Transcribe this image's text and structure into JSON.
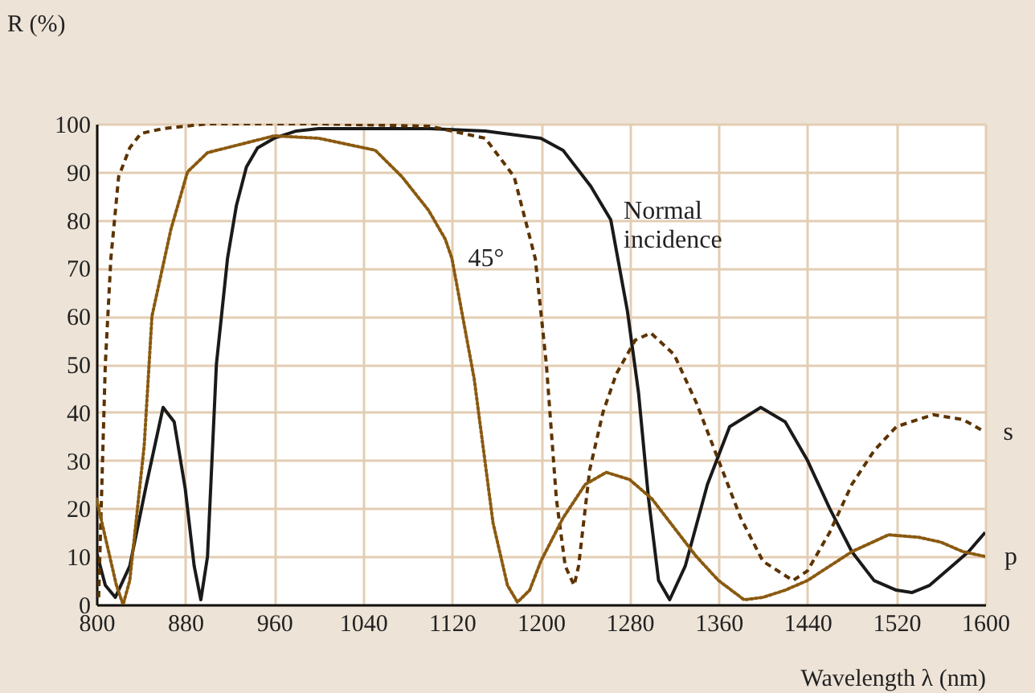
{
  "chart_data": {
    "type": "line",
    "xlabel": "Wavelength λ (nm)",
    "ylabel": "R (%)",
    "xlim": [
      800,
      1600
    ],
    "xticks": [
      800,
      880,
      960,
      1040,
      1120,
      1200,
      1280,
      1360,
      1440,
      1520,
      1600
    ],
    "ylim": [
      0,
      100
    ],
    "yticks": [
      0,
      10,
      20,
      30,
      40,
      50,
      60,
      70,
      80,
      90,
      100
    ],
    "grid": true,
    "annotations": [
      {
        "text": "45°",
        "x": 1120,
        "y": 72
      }
    ],
    "series": [
      {
        "name": "Normal incidence",
        "color": "#1a1a1a",
        "line_style": "solid",
        "x": [
          800,
          808,
          817,
          830,
          845,
          860,
          870,
          880,
          888,
          894,
          900,
          908,
          918,
          926,
          935,
          945,
          960,
          980,
          1000,
          1050,
          1100,
          1150,
          1200,
          1220,
          1245,
          1263,
          1278,
          1288,
          1297,
          1306,
          1316,
          1330,
          1350,
          1370,
          1398,
          1420,
          1440,
          1460,
          1480,
          1500,
          1520,
          1534,
          1550,
          1570,
          1585,
          1600
        ],
        "values": [
          11,
          4,
          1.5,
          8,
          25,
          41,
          38,
          24,
          8,
          1,
          10,
          50,
          72,
          83,
          91,
          95,
          97,
          98.5,
          99,
          99,
          99,
          98.5,
          97,
          94.5,
          87,
          80,
          61,
          44,
          22,
          5,
          1,
          8,
          25,
          37,
          41,
          38,
          30,
          20,
          11,
          5,
          3,
          2.5,
          4,
          8,
          11,
          15
        ]
      },
      {
        "name": "s",
        "color": "#5c3300",
        "line_style": "dashed",
        "x": [
          802,
          808,
          813,
          820,
          830,
          840,
          860,
          900,
          1000,
          1100,
          1150,
          1176,
          1195,
          1205,
          1214,
          1222,
          1230,
          1234,
          1244,
          1256,
          1268,
          1285,
          1299,
          1320,
          1340,
          1360,
          1380,
          1400,
          1427,
          1440,
          1460,
          1480,
          1500,
          1520,
          1553,
          1580,
          1599
        ],
        "values": [
          1.5,
          50,
          72,
          89,
          95,
          98,
          99,
          100,
          100,
          99.5,
          97,
          89,
          72,
          50,
          22,
          8,
          4,
          8,
          28,
          40,
          48,
          55,
          56.5,
          52,
          42,
          30,
          18,
          9,
          5,
          7,
          15,
          25,
          32,
          37,
          39.5,
          38.5,
          36
        ]
      },
      {
        "name": "p",
        "color": "#8a5a10",
        "line_style": "dotted",
        "x": [
          800,
          810,
          818,
          824,
          830,
          843,
          850,
          867,
          882,
          900,
          960,
          1000,
          1051,
          1075,
          1099,
          1114,
          1120,
          1140,
          1157,
          1170,
          1179,
          1190,
          1200,
          1220,
          1240,
          1259,
          1280,
          1300,
          1320,
          1340,
          1360,
          1383,
          1400,
          1420,
          1440,
          1460,
          1480,
          1513,
          1540,
          1560,
          1580,
          1600
        ],
        "values": [
          22,
          12,
          4,
          0,
          5,
          33,
          60,
          78,
          90,
          94,
          97.5,
          97,
          94.5,
          89,
          82,
          76,
          72,
          47,
          17,
          4,
          0.5,
          3,
          9,
          18,
          25,
          27.5,
          26,
          22,
          16,
          10,
          5,
          1,
          1.5,
          3,
          5,
          8,
          11,
          14.5,
          14,
          13,
          11,
          10
        ]
      }
    ]
  }
}
